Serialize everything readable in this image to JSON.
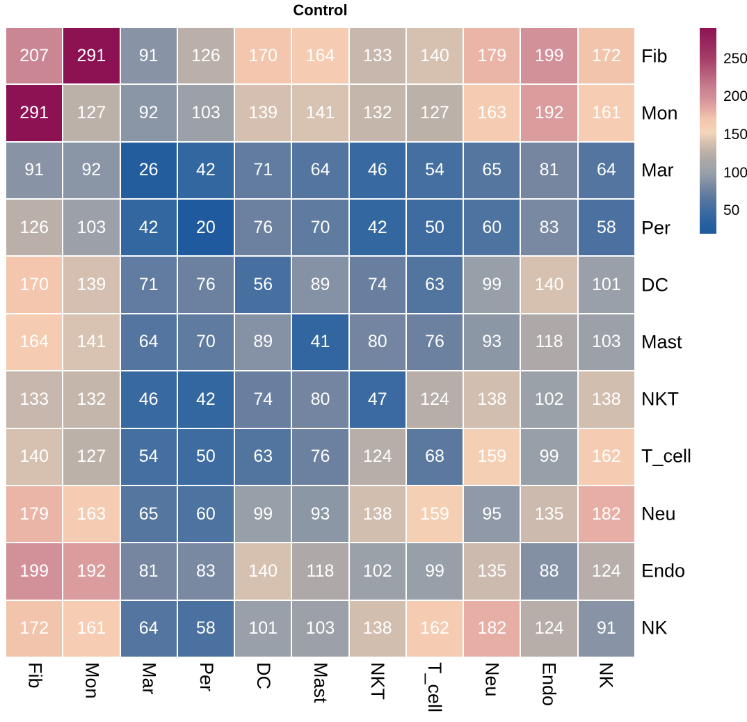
{
  "title": "Control",
  "chart_data": {
    "type": "heatmap",
    "rows": [
      "Fib",
      "Mon",
      "Mar",
      "Per",
      "DC",
      "Mast",
      "NKT",
      "T_cell",
      "Neu",
      "Endo",
      "NK"
    ],
    "columns": [
      "Fib",
      "Mon",
      "Mar",
      "Per",
      "DC",
      "Mast",
      "NKT",
      "T_cell",
      "Neu",
      "Endo",
      "NK"
    ],
    "values": [
      [
        207,
        291,
        91,
        126,
        170,
        164,
        133,
        140,
        179,
        199,
        172
      ],
      [
        291,
        127,
        92,
        103,
        139,
        141,
        132,
        127,
        163,
        192,
        161
      ],
      [
        91,
        92,
        26,
        42,
        71,
        64,
        46,
        54,
        65,
        81,
        64
      ],
      [
        126,
        103,
        42,
        20,
        76,
        70,
        42,
        50,
        60,
        83,
        58
      ],
      [
        170,
        139,
        71,
        76,
        56,
        89,
        74,
        63,
        99,
        140,
        101
      ],
      [
        164,
        141,
        64,
        70,
        89,
        41,
        80,
        76,
        93,
        118,
        103
      ],
      [
        133,
        132,
        46,
        42,
        74,
        80,
        47,
        124,
        138,
        102,
        138
      ],
      [
        140,
        127,
        54,
        50,
        63,
        76,
        124,
        68,
        159,
        99,
        162
      ],
      [
        179,
        163,
        65,
        60,
        99,
        93,
        138,
        159,
        95,
        135,
        182
      ],
      [
        199,
        192,
        81,
        83,
        140,
        118,
        102,
        99,
        135,
        88,
        124
      ],
      [
        172,
        161,
        64,
        58,
        101,
        103,
        138,
        162,
        182,
        124,
        91
      ]
    ],
    "cell_text_color": "#ffffff",
    "colorbar": {
      "min": 20,
      "max": 291,
      "ticks": [
        250,
        200,
        150,
        100,
        50
      ]
    },
    "color_stops": [
      [
        20,
        "#1E5A9D"
      ],
      [
        35,
        "#2A62A0"
      ],
      [
        50,
        "#3E6CA1"
      ],
      [
        65,
        "#55769F"
      ],
      [
        80,
        "#7485A1"
      ],
      [
        100,
        "#99A0A9"
      ],
      [
        115,
        "#A9A7A7"
      ],
      [
        130,
        "#C1B3AA"
      ],
      [
        143,
        "#DCC5B2"
      ],
      [
        153,
        "#F1D6BB"
      ],
      [
        160,
        "#F6CEB3"
      ],
      [
        172,
        "#F2C4AC"
      ],
      [
        185,
        "#E3A8A3"
      ],
      [
        200,
        "#D18E97"
      ],
      [
        210,
        "#C98392"
      ],
      [
        250,
        "#A63E68"
      ],
      [
        291,
        "#8D1254"
      ]
    ]
  }
}
